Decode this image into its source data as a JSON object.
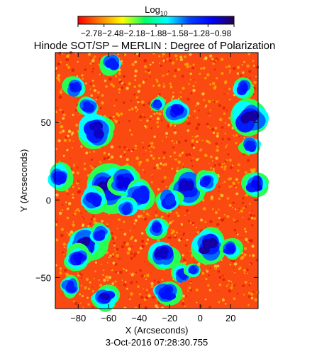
{
  "chart_data": {
    "type": "heatmap",
    "title": "Hinode SOT/SP – MERLIN : Degree of Polarization",
    "xlabel": "X (Arcseconds)",
    "ylabel": "Y (Arcseconds)",
    "timestamp": "3-Oct-2016 07:28:30.755",
    "colorbar": {
      "label_main": "Log",
      "label_sub": "10",
      "range": [
        -2.78,
        -0.98
      ],
      "tick_values": [
        -2.78,
        -2.48,
        -2.18,
        -1.88,
        -1.58,
        -1.28,
        -0.98
      ],
      "tick_labels_text": "−2.78−2.48−2.18−1.88−1.58−1.28−0.98",
      "colors": [
        "#ff0000",
        "#ff8000",
        "#ffff00",
        "#00ff60",
        "#00ffff",
        "#0040ff",
        "#0000ff",
        "#2a0050"
      ]
    },
    "xlim": [
      -95,
      38
    ],
    "ylim": [
      -70,
      95
    ],
    "x_ticks": [
      -80,
      -60,
      -40,
      -20,
      0,
      20
    ],
    "x_tick_labels": [
      "−80",
      "−60",
      "−40",
      "−20",
      "0",
      "20"
    ],
    "y_ticks": [
      -50,
      0,
      50
    ],
    "y_tick_labels": [
      "−50",
      "0",
      "50"
    ],
    "regions": [
      {
        "x": -60,
        "y": 8,
        "r": 9,
        "level": -1.1
      },
      {
        "x": -50,
        "y": 12,
        "r": 6,
        "level": -1.2
      },
      {
        "x": -70,
        "y": 0,
        "r": 5,
        "level": -1.3
      },
      {
        "x": -40,
        "y": 3,
        "r": 6,
        "level": -1.35
      },
      {
        "x": -8,
        "y": 8,
        "r": 7,
        "level": -1.15
      },
      {
        "x": 4,
        "y": 12,
        "r": 4,
        "level": -1.3
      },
      {
        "x": -20,
        "y": 0,
        "r": 5,
        "level": -1.45
      },
      {
        "x": -75,
        "y": -28,
        "r": 7,
        "level": -1.1
      },
      {
        "x": -80,
        "y": -38,
        "r": 5,
        "level": -1.25
      },
      {
        "x": -66,
        "y": -22,
        "r": 4,
        "level": -1.35
      },
      {
        "x": -25,
        "y": -35,
        "r": 6,
        "level": -1.15
      },
      {
        "x": -28,
        "y": -18,
        "r": 4,
        "level": -1.3
      },
      {
        "x": -12,
        "y": -48,
        "r": 4,
        "level": -1.35
      },
      {
        "x": -22,
        "y": -60,
        "r": 5,
        "level": -1.3
      },
      {
        "x": -62,
        "y": -63,
        "r": 5,
        "level": -1.15
      },
      {
        "x": -85,
        "y": -56,
        "r": 4,
        "level": -1.35
      },
      {
        "x": 5,
        "y": -30,
        "r": 7,
        "level": -1.1
      },
      {
        "x": 20,
        "y": -32,
        "r": 4,
        "level": -1.3
      },
      {
        "x": -5,
        "y": -45,
        "r": 3,
        "level": -1.4
      },
      {
        "x": 32,
        "y": 52,
        "r": 8,
        "level": -1.1
      },
      {
        "x": 28,
        "y": 72,
        "r": 4,
        "level": -1.3
      },
      {
        "x": 33,
        "y": 35,
        "r": 4,
        "level": -1.35
      },
      {
        "x": 36,
        "y": 10,
        "r": 5,
        "level": -1.25
      },
      {
        "x": -15,
        "y": 58,
        "r": 5,
        "level": -1.25
      },
      {
        "x": -28,
        "y": 62,
        "r": 3,
        "level": -1.45
      },
      {
        "x": -68,
        "y": 45,
        "r": 7,
        "level": -1.15
      },
      {
        "x": -74,
        "y": 60,
        "r": 4,
        "level": -1.35
      },
      {
        "x": -82,
        "y": 72,
        "r": 4,
        "level": -1.3
      },
      {
        "x": -58,
        "y": 88,
        "r": 4,
        "level": -1.35
      },
      {
        "x": -92,
        "y": 15,
        "r": 5,
        "level": -1.3
      },
      {
        "x": -48,
        "y": -5,
        "r": 4,
        "level": -1.4
      }
    ]
  }
}
